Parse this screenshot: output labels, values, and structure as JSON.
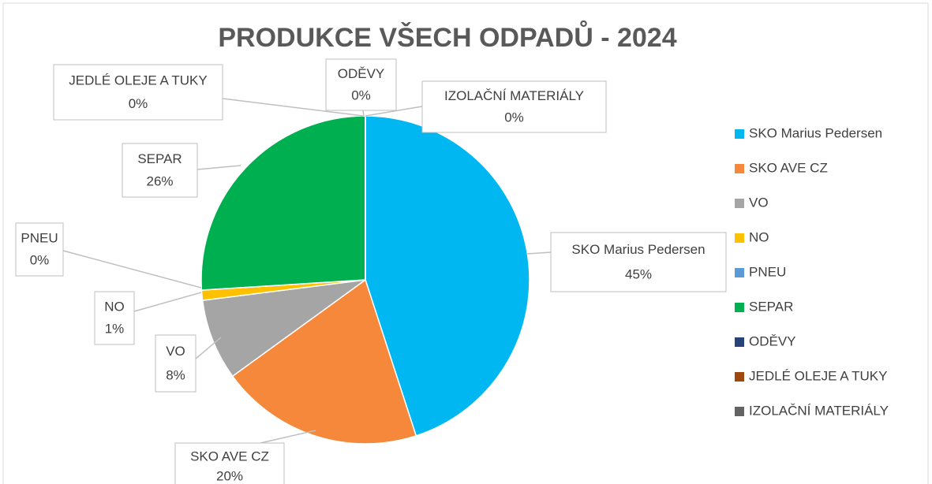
{
  "chart_data": {
    "type": "pie",
    "title": "PRODUKCE VŠECH ODPADŮ - 2024",
    "categories": [
      "SKO Marius Pedersen",
      "SKO AVE CZ",
      "VO",
      "NO",
      "PNEU",
      "SEPAR",
      "ODĚVY",
      "JEDLÉ OLEJE A TUKY",
      "IZOLAČNÍ MATERIÁLY"
    ],
    "values": [
      45,
      20,
      8,
      1,
      0,
      26,
      0,
      0,
      0
    ],
    "value_labels": [
      "45%",
      "20%",
      "8%",
      "1%",
      "0%",
      "26%",
      "0%",
      "0%",
      "0%"
    ],
    "colors": [
      "#00b7f1",
      "#f5883a",
      "#a5a5a5",
      "#ffc000",
      "#5b9bd5",
      "#00b050",
      "#264478",
      "#9e480e",
      "#636363"
    ],
    "legend": "right"
  }
}
